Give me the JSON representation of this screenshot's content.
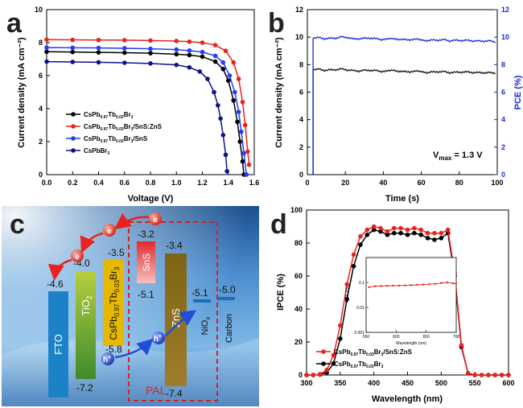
{
  "panel_labels": {
    "a": "a",
    "b": "b",
    "c": "c",
    "d": "d"
  },
  "chart_data": [
    {
      "panel": "a",
      "type": "line",
      "xlabel": "Voltage (V)",
      "ylabel": "Current density (mA cm⁻²)",
      "xlim": [
        0.0,
        1.6
      ],
      "ylim": [
        0,
        10
      ],
      "xticks": [
        "0.0",
        "0.2",
        "0.4",
        "0.6",
        "0.8",
        "1.0",
        "1.2",
        "1.4",
        "1.6"
      ],
      "yticks": [
        "0",
        "2",
        "4",
        "6",
        "8",
        "10"
      ],
      "legend_position": "bottom-left",
      "series": [
        {
          "name": "CsPb0.97Tb0.03Br3",
          "label_parts": [
            "CsPb",
            "0.97",
            "Tb",
            "0.03",
            "Br",
            "3"
          ],
          "color": "#000000",
          "x": [
            0,
            0.2,
            0.4,
            0.6,
            0.8,
            1.0,
            1.1,
            1.2,
            1.3,
            1.36,
            1.4,
            1.44,
            1.47,
            1.49,
            1.51,
            1.52
          ],
          "y": [
            7.45,
            7.43,
            7.41,
            7.39,
            7.36,
            7.3,
            7.25,
            7.15,
            6.85,
            6.4,
            5.7,
            4.5,
            3.2,
            2.0,
            0.8,
            0
          ]
        },
        {
          "name": "CsPb0.97Tb0.03Br3/SnS:ZnS",
          "label_parts": [
            "CsPb",
            "0.97",
            "Tb",
            "0.03",
            "Br",
            "3",
            "/SnS:ZnS"
          ],
          "color": "#e8231e",
          "x": [
            0,
            0.2,
            0.4,
            0.6,
            0.8,
            1.0,
            1.1,
            1.2,
            1.3,
            1.38,
            1.44,
            1.48,
            1.51,
            1.53,
            1.55,
            1.56
          ],
          "y": [
            8.18,
            8.17,
            8.16,
            8.15,
            8.13,
            8.1,
            8.06,
            8.0,
            7.85,
            7.5,
            6.8,
            5.8,
            4.4,
            3.0,
            1.4,
            0.6
          ]
        },
        {
          "name": "CsPb0.97Tb0.03Br3/SnS",
          "label_parts": [
            "CsPb",
            "0.97",
            "Tb",
            "0.03",
            "Br",
            "3",
            "/SnS"
          ],
          "color": "#1f3cff",
          "x": [
            0,
            0.2,
            0.4,
            0.6,
            0.8,
            1.0,
            1.1,
            1.2,
            1.3,
            1.36,
            1.41,
            1.45,
            1.48,
            1.5,
            1.52,
            1.54
          ],
          "y": [
            7.7,
            7.69,
            7.68,
            7.66,
            7.63,
            7.58,
            7.52,
            7.43,
            7.2,
            6.8,
            6.0,
            5.0,
            3.8,
            2.6,
            1.3,
            0
          ]
        },
        {
          "name": "CsPbBr3",
          "label_parts": [
            "CsPbBr",
            "3"
          ],
          "color": "#10108a",
          "x": [
            0,
            0.2,
            0.4,
            0.6,
            0.8,
            1.0,
            1.1,
            1.18,
            1.24,
            1.29,
            1.32,
            1.34,
            1.36,
            1.38,
            1.39
          ],
          "y": [
            6.85,
            6.83,
            6.81,
            6.78,
            6.74,
            6.65,
            6.5,
            6.25,
            5.8,
            5.0,
            4.2,
            3.4,
            2.4,
            1.2,
            0.2
          ]
        }
      ]
    },
    {
      "panel": "b",
      "type": "line",
      "xlabel": "Time (s)",
      "ylabel_left": "Current density (mA cm⁻²)",
      "ylabel_right": "PCE (%)",
      "xlim": [
        0,
        100
      ],
      "ylim_left": [
        0,
        12
      ],
      "ylim_right": [
        0,
        12
      ],
      "xticks": [
        "0",
        "20",
        "40",
        "60",
        "80",
        "100"
      ],
      "yticks_left": [
        "0",
        "2",
        "4",
        "6",
        "8",
        "10",
        "12"
      ],
      "yticks_right": [
        "0",
        "2",
        "4",
        "6",
        "8",
        "10",
        "12"
      ],
      "annotation": "V",
      "annotation_sub": "max",
      "annotation_rest": " = 1.3 V",
      "series": [
        {
          "name": "Current density",
          "color": "#111111",
          "axis": "left",
          "x": [
            3,
            6,
            9,
            12,
            15,
            18,
            21,
            24,
            27,
            30,
            33,
            36,
            39,
            42,
            45,
            48,
            51,
            54,
            57,
            60,
            63,
            66,
            69,
            72,
            75,
            78,
            81,
            84,
            87,
            90,
            93,
            96,
            99
          ],
          "y": [
            7.6,
            7.7,
            7.55,
            7.65,
            7.6,
            7.72,
            7.58,
            7.6,
            7.5,
            7.62,
            7.55,
            7.6,
            7.48,
            7.55,
            7.6,
            7.5,
            7.52,
            7.45,
            7.55,
            7.5,
            7.4,
            7.5,
            7.45,
            7.52,
            7.38,
            7.48,
            7.42,
            7.5,
            7.4,
            7.45,
            7.38,
            7.45,
            7.35
          ]
        },
        {
          "name": "PCE",
          "color": "#1c2bd6",
          "axis": "right",
          "x": [
            3,
            6,
            9,
            12,
            15,
            18,
            21,
            24,
            27,
            30,
            33,
            36,
            39,
            42,
            45,
            48,
            51,
            54,
            57,
            60,
            63,
            66,
            69,
            72,
            75,
            78,
            81,
            84,
            87,
            90,
            93,
            96,
            99
          ],
          "y": [
            9.9,
            10.0,
            9.85,
            9.95,
            9.9,
            10.05,
            9.95,
            9.9,
            9.85,
            9.95,
            9.9,
            9.92,
            9.8,
            9.88,
            9.9,
            9.82,
            9.85,
            9.78,
            9.88,
            9.8,
            9.72,
            9.82,
            9.75,
            9.85,
            9.7,
            9.8,
            9.72,
            9.8,
            9.7,
            9.75,
            9.68,
            9.76,
            9.62
          ]
        }
      ]
    },
    {
      "panel": "d",
      "type": "line",
      "xlabel": "Wavelength (nm)",
      "ylabel": "IPCE (%)",
      "xlim": [
        300,
        600
      ],
      "ylim": [
        0,
        100
      ],
      "xticks": [
        "300",
        "350",
        "400",
        "450",
        "500",
        "550",
        "600"
      ],
      "yticks": [
        "0",
        "20",
        "40",
        "60",
        "80",
        "100"
      ],
      "legend_position": "bottom-left",
      "series": [
        {
          "name": "CsPb0.97Tb0.03Br3/SnS:ZnS",
          "label_parts": [
            "CsPb",
            "0.97",
            "Tb",
            "0.03",
            "Br",
            "3",
            "/SnS:ZnS"
          ],
          "color": "#e8231e",
          "x": [
            300,
            310,
            320,
            330,
            340,
            350,
            360,
            370,
            380,
            390,
            400,
            410,
            420,
            430,
            440,
            450,
            460,
            470,
            480,
            490,
            500,
            510,
            520,
            530,
            540,
            550,
            560,
            570,
            580,
            590,
            600
          ],
          "y": [
            0,
            0,
            0.5,
            3,
            12,
            30,
            55,
            73,
            84,
            88,
            90,
            89,
            87,
            89,
            89,
            88,
            89,
            88,
            86,
            86,
            86,
            88,
            62,
            18,
            1,
            0,
            0,
            0,
            0,
            0,
            0
          ]
        },
        {
          "name": "CsPb0.97Tb0.03Br3",
          "label_parts": [
            "CsPb",
            "0.97",
            "Tb",
            "0.03",
            "Br",
            "3"
          ],
          "color": "#000000",
          "x": [
            300,
            310,
            320,
            330,
            340,
            350,
            360,
            370,
            380,
            390,
            400,
            410,
            420,
            430,
            440,
            450,
            460,
            470,
            480,
            490,
            500,
            510,
            520,
            530,
            540,
            550,
            560,
            570,
            580,
            590,
            600
          ],
          "y": [
            0,
            0,
            0.3,
            1.5,
            7,
            22,
            46,
            66,
            79,
            85,
            88,
            87,
            85,
            86,
            86,
            85,
            86,
            85,
            83,
            82,
            83,
            86,
            60,
            17,
            1,
            0,
            0,
            0,
            0,
            0,
            0
          ]
        }
      ],
      "inset": {
        "xlabel": "Wavelength (nm)",
        "ylabel": "IPCE (%)",
        "xlim": [
          550,
          700
        ],
        "ylim_log": [
          0.001,
          1
        ],
        "xticks": [
          "550",
          "600",
          "650",
          "700"
        ],
        "yticks": [
          "0.001",
          "0.01",
          "0.1"
        ],
        "x": [
          555,
          565,
          575,
          585,
          595,
          605,
          615,
          625,
          635,
          645,
          655,
          665,
          675,
          685,
          695,
          700
        ],
        "y": [
          0.065,
          0.07,
          0.072,
          0.073,
          0.074,
          0.075,
          0.076,
          0.078,
          0.08,
          0.082,
          0.085,
          0.088,
          0.095,
          0.1,
          0.092,
          0.09
        ],
        "color": "#e8231e"
      }
    }
  ],
  "diagram_c": {
    "electron_symbol": "e",
    "hole_symbol": "h",
    "hole_superscript": "+",
    "pal_label": "PAL",
    "blocks": [
      {
        "id": "fto",
        "label": "FTO",
        "top": "",
        "bottom": ""
      },
      {
        "id": "tio2",
        "label_parts": [
          "TiO",
          "2"
        ],
        "top": "-4.0",
        "bottom": "-7.2"
      },
      {
        "id": "perov",
        "label_parts": [
          "CsPb",
          "0.97",
          "Tb",
          "0.03",
          "Br",
          "3"
        ],
        "top": "-3.5",
        "bottom": "-5.8"
      },
      {
        "id": "sns",
        "label": "SnS",
        "top": "-3.2",
        "bottom": "-5.1"
      },
      {
        "id": "zns",
        "label": "ZnS",
        "top": "-3.4",
        "bottom": "-7.4"
      },
      {
        "id": "niox",
        "label_parts": [
          "NiO",
          "x"
        ],
        "top": "-5.1",
        "bottom": ""
      },
      {
        "id": "carbon",
        "label": "Carbon",
        "top": "-5.0",
        "bottom": ""
      }
    ],
    "fto_level": "-4.6",
    "colors": {
      "fto": "#1b7fc4",
      "tio2_top": "#a8c23a",
      "tio2_bottom": "#4a8a2a",
      "perov": "#e6b800",
      "sns_top": "#e23a3a",
      "sns_bottom": "#f4b6b6",
      "zns": "#8a6a1e",
      "niox": "#1f6fb5",
      "carbon": "#1f6fb5",
      "pal_border": "#d62020"
    }
  }
}
